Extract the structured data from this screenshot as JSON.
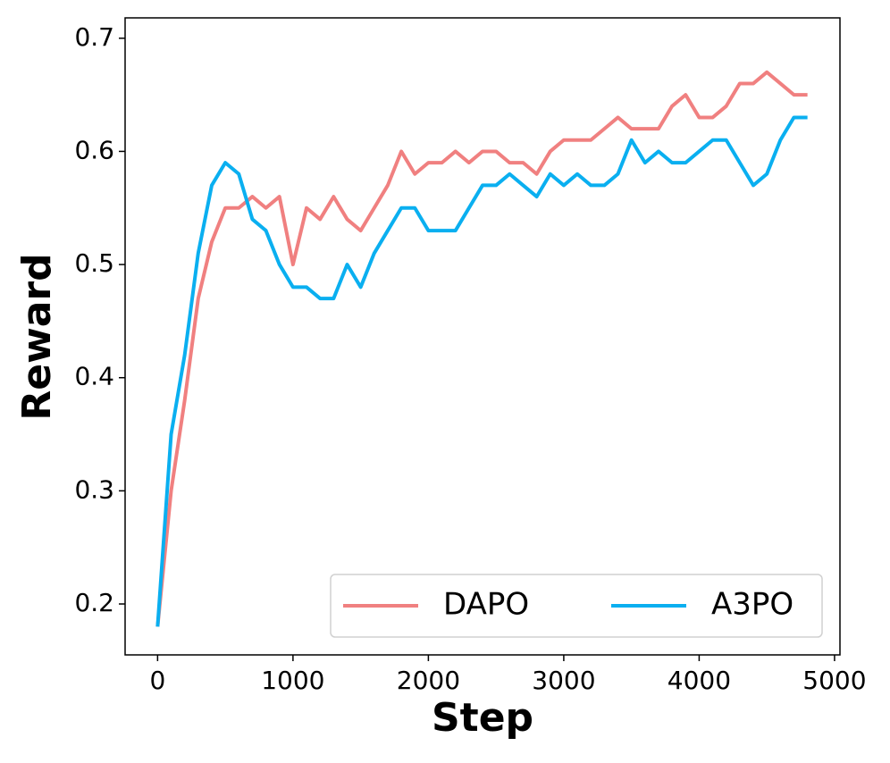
{
  "chart_data": {
    "type": "line",
    "x_label": "Step",
    "y_label": "Reward",
    "x": [
      0,
      100,
      200,
      300,
      400,
      500,
      600,
      700,
      800,
      900,
      1000,
      1100,
      1200,
      1300,
      1400,
      1500,
      1600,
      1700,
      1800,
      1900,
      2000,
      2100,
      2200,
      2300,
      2400,
      2500,
      2600,
      2700,
      2800,
      2900,
      3000,
      3100,
      3200,
      3300,
      3400,
      3500,
      3600,
      3700,
      3800,
      3900,
      4000,
      4100,
      4200,
      4300,
      4400,
      4500,
      4600,
      4700,
      4800
    ],
    "series": [
      {
        "name": "DAPO",
        "color": "#f08080",
        "values": [
          0.18,
          0.3,
          0.38,
          0.47,
          0.52,
          0.55,
          0.55,
          0.56,
          0.55,
          0.56,
          0.5,
          0.55,
          0.54,
          0.56,
          0.54,
          0.53,
          0.55,
          0.57,
          0.6,
          0.58,
          0.59,
          0.59,
          0.6,
          0.59,
          0.6,
          0.6,
          0.59,
          0.59,
          0.58,
          0.6,
          0.61,
          0.61,
          0.61,
          0.62,
          0.63,
          0.62,
          0.62,
          0.62,
          0.64,
          0.65,
          0.63,
          0.63,
          0.64,
          0.66,
          0.66,
          0.67,
          0.66,
          0.65,
          0.65
        ]
      },
      {
        "name": "A3PO",
        "color": "#0aaff0",
        "values": [
          0.18,
          0.35,
          0.42,
          0.51,
          0.57,
          0.59,
          0.58,
          0.54,
          0.53,
          0.5,
          0.48,
          0.48,
          0.47,
          0.47,
          0.5,
          0.48,
          0.51,
          0.53,
          0.55,
          0.55,
          0.53,
          0.53,
          0.53,
          0.55,
          0.57,
          0.57,
          0.58,
          0.57,
          0.56,
          0.58,
          0.57,
          0.58,
          0.57,
          0.57,
          0.58,
          0.61,
          0.59,
          0.6,
          0.59,
          0.59,
          0.6,
          0.61,
          0.61,
          0.59,
          0.57,
          0.58,
          0.61,
          0.63,
          0.63
        ]
      }
    ],
    "xlim": [
      -240,
      5040
    ],
    "xticks": [
      0,
      1000,
      2000,
      3000,
      4000,
      5000
    ],
    "ylim": [
      0.155,
      0.718
    ],
    "yticks": [
      0.2,
      0.3,
      0.4,
      0.5,
      0.6,
      0.7
    ],
    "grid": false,
    "legend": "lower right"
  }
}
